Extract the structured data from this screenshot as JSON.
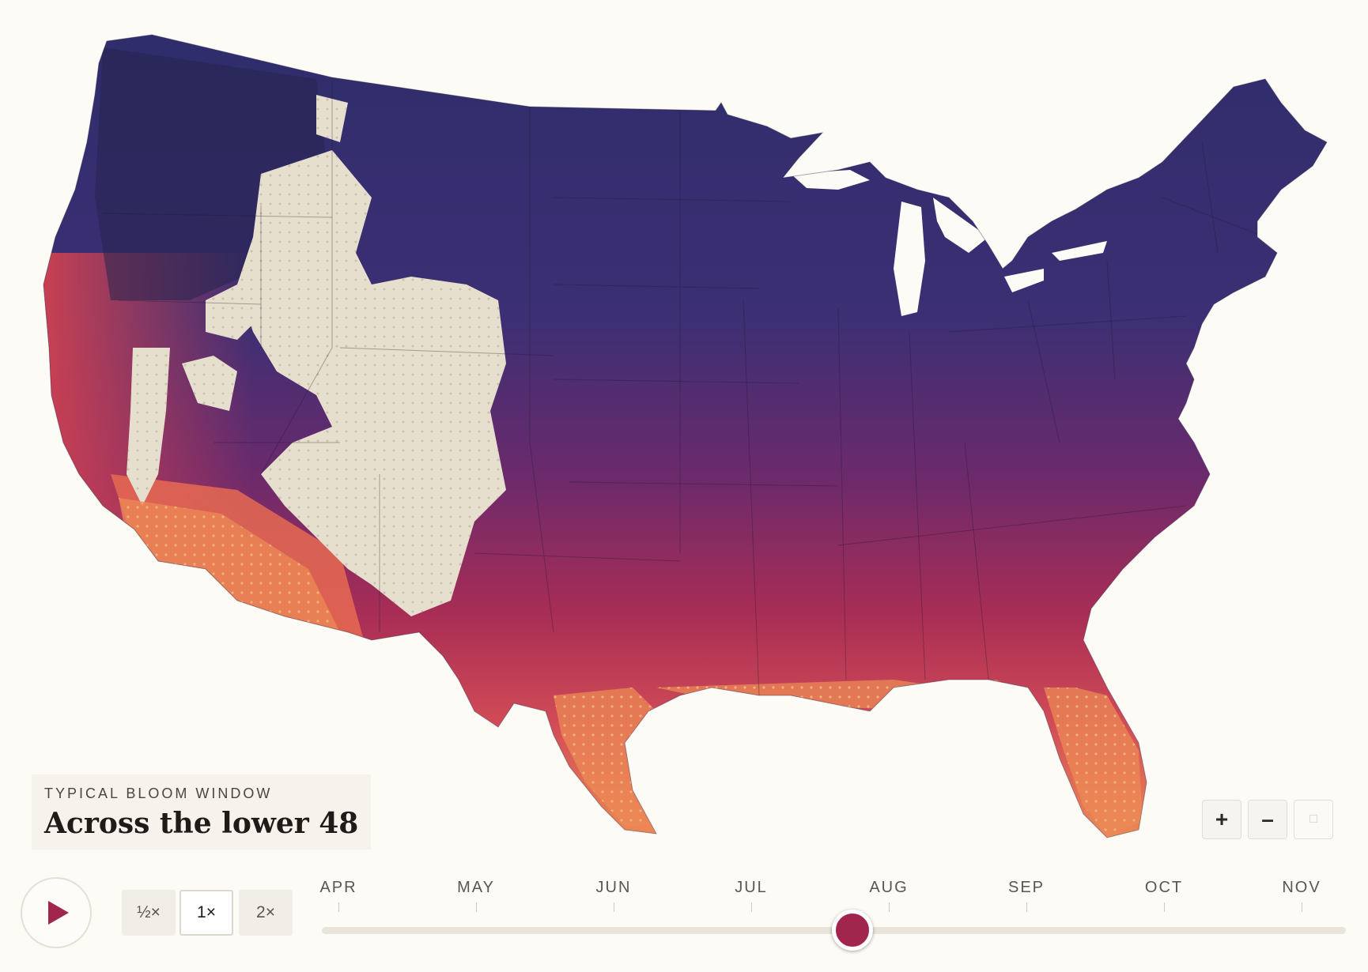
{
  "caption": {
    "kicker": "TYPICAL BLOOM WINDOW",
    "headline": "Across the lower 48"
  },
  "zoom": {
    "zoom_in_label": "+",
    "zoom_out_label": "–",
    "reset_label": "□"
  },
  "playback": {
    "speeds": [
      "½×",
      "1×",
      "2×"
    ],
    "active_speed_index": 1
  },
  "timeline": {
    "months": [
      "APR",
      "MAY",
      "JUN",
      "JUL",
      "AUG",
      "SEP",
      "OCT",
      "NOV"
    ],
    "position_fraction": 0.518
  },
  "colors": {
    "accent": "#a0264d",
    "cold": "#2f2d6b",
    "mid": "#7a2a6a",
    "warm": "#cf4a55",
    "hot": "#ec8a55",
    "no_data": "#e6dfcd",
    "background": "#fcfbf6"
  }
}
